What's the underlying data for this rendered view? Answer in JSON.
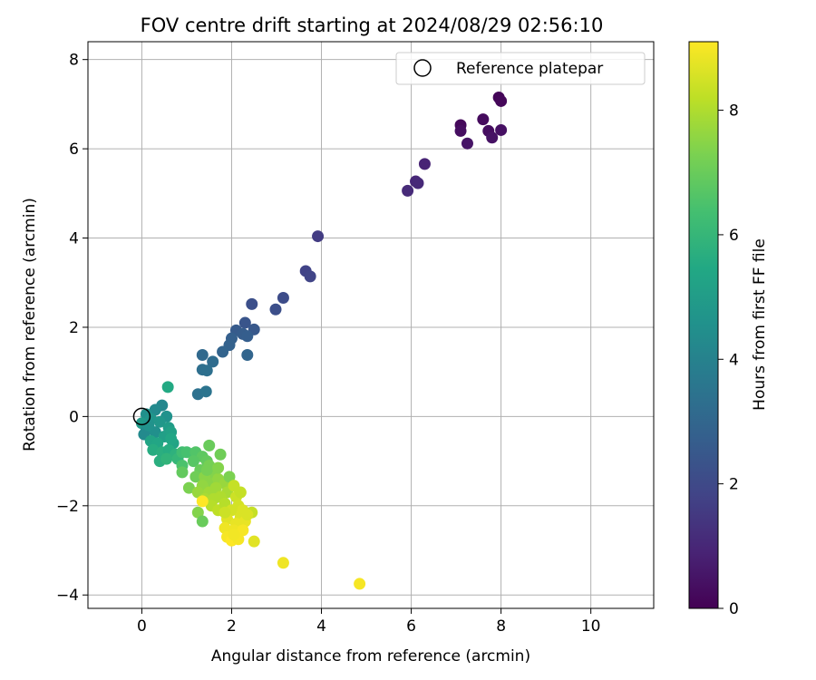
{
  "chart_data": {
    "type": "scatter",
    "title": "FOV centre drift starting at 2024/08/29 02:56:10",
    "xlabel": "Angular distance from reference (arcmin)",
    "ylabel": "Rotation from reference (arcmin)",
    "xlim": [
      -1.2,
      11.4
    ],
    "ylim": [
      -4.3,
      8.4
    ],
    "x_ticks": [
      0,
      2,
      4,
      6,
      8,
      10
    ],
    "y_ticks": [
      -4,
      -2,
      0,
      2,
      4,
      6,
      8
    ],
    "x_tick_labels": [
      "0",
      "2",
      "4",
      "6",
      "8",
      "10"
    ],
    "y_tick_labels": [
      "−4",
      "−2",
      "0",
      "2",
      "4",
      "6",
      "8"
    ],
    "grid": true,
    "legend": {
      "position": "top-right",
      "entries": [
        "Reference platepar"
      ]
    },
    "reference_point": {
      "x": 0,
      "y": 0
    },
    "colorbar": {
      "label": "Hours from first FF file",
      "colormap": "viridis",
      "range": [
        0,
        9.1
      ],
      "ticks": [
        0,
        2,
        4,
        6,
        8
      ],
      "tick_labels": [
        "0",
        "2",
        "4",
        "6",
        "8"
      ]
    },
    "points": [
      [
        7.95,
        7.15,
        0.1
      ],
      [
        8.0,
        7.07,
        0.15
      ],
      [
        7.1,
        6.53,
        0.2
      ],
      [
        7.6,
        6.66,
        0.25
      ],
      [
        7.72,
        6.4,
        0.3
      ],
      [
        7.1,
        6.4,
        0.35
      ],
      [
        8.0,
        6.42,
        0.4
      ],
      [
        7.8,
        6.25,
        0.45
      ],
      [
        7.25,
        6.12,
        0.5
      ],
      [
        6.3,
        5.66,
        0.9
      ],
      [
        6.1,
        5.27,
        1.0
      ],
      [
        6.15,
        5.23,
        1.05
      ],
      [
        5.92,
        5.06,
        1.1
      ],
      [
        3.92,
        4.04,
        1.6
      ],
      [
        3.65,
        3.26,
        1.8
      ],
      [
        3.75,
        3.14,
        1.85
      ],
      [
        2.45,
        2.52,
        2.2
      ],
      [
        3.15,
        2.66,
        2.1
      ],
      [
        2.98,
        2.4,
        2.2
      ],
      [
        2.3,
        2.1,
        2.4
      ],
      [
        2.5,
        1.95,
        2.5
      ],
      [
        2.1,
        1.93,
        2.6
      ],
      [
        2.25,
        1.85,
        2.65
      ],
      [
        2.35,
        1.8,
        2.7
      ],
      [
        2.0,
        1.75,
        2.75
      ],
      [
        1.95,
        1.6,
        2.85
      ],
      [
        1.8,
        1.45,
        2.9
      ],
      [
        2.35,
        1.38,
        2.95
      ],
      [
        1.35,
        1.38,
        3.1
      ],
      [
        1.58,
        1.23,
        3.2
      ],
      [
        1.35,
        1.05,
        3.3
      ],
      [
        1.45,
        1.03,
        3.35
      ],
      [
        1.25,
        0.5,
        3.4
      ],
      [
        1.43,
        0.56,
        3.5
      ],
      [
        0.58,
        0.66,
        5.5
      ],
      [
        0.45,
        0.25,
        4.2
      ],
      [
        0.3,
        0.15,
        4.3
      ],
      [
        0.1,
        0.05,
        4.5
      ],
      [
        0.55,
        0.0,
        4.6
      ],
      [
        0.2,
        -0.05,
        4.7
      ],
      [
        0.4,
        -0.12,
        4.8
      ],
      [
        0.0,
        -0.15,
        4.9
      ],
      [
        0.6,
        -0.25,
        5.0
      ],
      [
        0.1,
        -0.3,
        4.4
      ],
      [
        0.3,
        -0.35,
        4.5
      ],
      [
        0.05,
        -0.4,
        4.3
      ],
      [
        0.5,
        -0.45,
        5.1
      ],
      [
        0.65,
        -0.35,
        5.2
      ],
      [
        0.2,
        -0.55,
        5.3
      ],
      [
        0.7,
        -0.6,
        5.3
      ],
      [
        0.35,
        -0.6,
        5.4
      ],
      [
        0.25,
        -0.75,
        5.6
      ],
      [
        0.45,
        -0.8,
        5.7
      ],
      [
        0.6,
        -0.75,
        5.6
      ],
      [
        0.75,
        -0.85,
        5.8
      ],
      [
        0.4,
        -1.0,
        5.7
      ],
      [
        0.55,
        -0.95,
        5.9
      ],
      [
        0.8,
        -0.95,
        6.0
      ],
      [
        0.65,
        -0.5,
        5.4
      ],
      [
        0.15,
        -0.2,
        4.6
      ],
      [
        0.9,
        -0.8,
        6.3
      ],
      [
        1.0,
        -0.8,
        6.4
      ],
      [
        1.2,
        -0.8,
        6.6
      ],
      [
        1.35,
        -0.9,
        6.8
      ],
      [
        0.9,
        -1.1,
        6.5
      ],
      [
        1.15,
        -1.0,
        6.7
      ],
      [
        1.5,
        -0.65,
        7.0
      ],
      [
        1.75,
        -0.85,
        7.1
      ],
      [
        0.9,
        -1.25,
        6.9
      ],
      [
        1.45,
        -1.0,
        6.9
      ],
      [
        1.3,
        -1.2,
        7.0
      ],
      [
        1.5,
        -1.1,
        7.2
      ],
      [
        1.2,
        -1.35,
        7.1
      ],
      [
        1.05,
        -1.6,
        7.3
      ],
      [
        1.6,
        -1.3,
        7.4
      ],
      [
        1.4,
        -1.35,
        7.5
      ],
      [
        1.55,
        -1.5,
        7.5
      ],
      [
        1.7,
        -1.4,
        7.6
      ],
      [
        1.85,
        -1.5,
        7.7
      ],
      [
        1.35,
        -1.55,
        7.6
      ],
      [
        1.25,
        -1.7,
        7.7
      ],
      [
        1.5,
        -1.7,
        7.8
      ],
      [
        1.65,
        -1.6,
        7.8
      ],
      [
        1.9,
        -1.7,
        7.9
      ],
      [
        1.4,
        -1.85,
        7.9
      ],
      [
        1.6,
        -1.85,
        8.0
      ],
      [
        1.75,
        -1.8,
        8.0
      ],
      [
        1.95,
        -1.35,
        7.3
      ],
      [
        1.45,
        -1.2,
        7.2
      ],
      [
        1.7,
        -1.15,
        7.4
      ],
      [
        1.55,
        -2.0,
        8.1
      ],
      [
        1.25,
        -2.15,
        7.4
      ],
      [
        1.35,
        -2.35,
        7.0
      ],
      [
        1.7,
        -2.1,
        8.2
      ],
      [
        1.85,
        -1.95,
        8.1
      ],
      [
        2.05,
        -1.55,
        8.3
      ],
      [
        2.1,
        -1.8,
        8.4
      ],
      [
        2.15,
        -2.0,
        8.5
      ],
      [
        2.0,
        -2.1,
        8.5
      ],
      [
        2.25,
        -2.1,
        8.6
      ],
      [
        2.45,
        -2.15,
        8.3
      ],
      [
        2.2,
        -2.25,
        8.6
      ],
      [
        1.9,
        -2.3,
        8.7
      ],
      [
        2.1,
        -2.4,
        8.8
      ],
      [
        2.3,
        -2.35,
        8.8
      ],
      [
        1.85,
        -2.5,
        8.9
      ],
      [
        2.05,
        -2.55,
        8.9
      ],
      [
        2.25,
        -2.55,
        9.0
      ],
      [
        1.9,
        -2.7,
        9.0
      ],
      [
        2.0,
        -2.78,
        9.1
      ],
      [
        2.15,
        -2.75,
        9.0
      ],
      [
        2.05,
        -2.65,
        8.95
      ],
      [
        2.35,
        -2.2,
        8.6
      ],
      [
        2.2,
        -1.7,
        8.3
      ],
      [
        1.85,
        -2.15,
        8.4
      ],
      [
        1.35,
        -1.9,
        9.1
      ],
      [
        2.5,
        -2.8,
        8.7
      ],
      [
        3.15,
        -3.28,
        8.9
      ],
      [
        4.85,
        -3.75,
        9.0
      ]
    ]
  }
}
